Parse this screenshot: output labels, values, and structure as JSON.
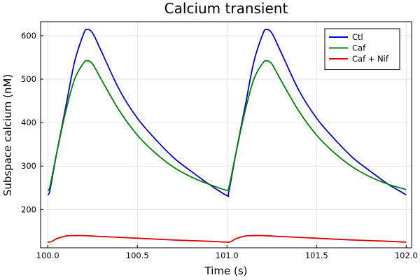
{
  "chart_data": {
    "type": "line",
    "title": "Calcium transient",
    "xlabel": "Time (s)",
    "ylabel": "Subspace calcium (nM)",
    "xlim": [
      99.96,
      102.03
    ],
    "ylim": [
      112,
      632
    ],
    "xticks": [
      100.0,
      100.5,
      101.0,
      101.5,
      102.0
    ],
    "xtick_labels": [
      "100.0",
      "100.5",
      "101.0",
      "101.5",
      "102.0"
    ],
    "yticks": [
      200,
      300,
      400,
      500,
      600
    ],
    "ytick_labels": [
      "200",
      "300",
      "400",
      "500",
      "600"
    ],
    "grid": true,
    "legend_position": "top-right",
    "series": [
      {
        "name": "Ctl",
        "color": "#0000cc",
        "x": [
          100.0,
          100.01,
          100.05,
          100.1,
          100.15,
          100.2,
          100.22,
          100.25,
          100.3,
          100.4,
          100.5,
          100.6,
          100.7,
          100.8,
          100.9,
          101.0,
          101.01,
          101.05,
          101.1,
          101.15,
          101.2,
          101.22,
          101.25,
          101.3,
          101.4,
          101.5,
          101.6,
          101.7,
          101.8,
          101.9,
          102.0
        ],
        "y": [
          234,
          240,
          330,
          435,
          540,
          604,
          614,
          606,
          563,
          475,
          410,
          362,
          320,
          288,
          258,
          232,
          240,
          330,
          435,
          540,
          604,
          614,
          606,
          563,
          475,
          410,
          362,
          320,
          288,
          258,
          234
        ]
      },
      {
        "name": "Caf",
        "color": "#008000",
        "x": [
          100.0,
          100.01,
          100.05,
          100.1,
          100.15,
          100.2,
          100.22,
          100.25,
          100.3,
          100.4,
          100.5,
          100.6,
          100.7,
          100.8,
          100.9,
          101.0,
          101.01,
          101.05,
          101.1,
          101.15,
          101.2,
          101.22,
          101.25,
          101.3,
          101.4,
          101.5,
          101.6,
          101.7,
          101.8,
          101.9,
          102.0
        ],
        "y": [
          244,
          249,
          330,
          425,
          500,
          537,
          542,
          535,
          498,
          427,
          371,
          330,
          298,
          275,
          258,
          244,
          249,
          330,
          425,
          500,
          537,
          542,
          535,
          498,
          427,
          371,
          330,
          298,
          275,
          258,
          246
        ]
      },
      {
        "name": "Caf + Nif",
        "color": "#dd0000",
        "x": [
          100.0,
          100.02,
          100.05,
          100.1,
          100.15,
          100.2,
          100.3,
          100.5,
          100.7,
          100.9,
          101.0,
          101.02,
          101.05,
          101.1,
          101.15,
          101.2,
          101.3,
          101.5,
          101.7,
          101.9,
          102.0
        ],
        "y": [
          125,
          126,
          133,
          139,
          140,
          140,
          138,
          134,
          130,
          127,
          125,
          126,
          133,
          139,
          140,
          140,
          138,
          134,
          130,
          127,
          125
        ]
      }
    ]
  }
}
